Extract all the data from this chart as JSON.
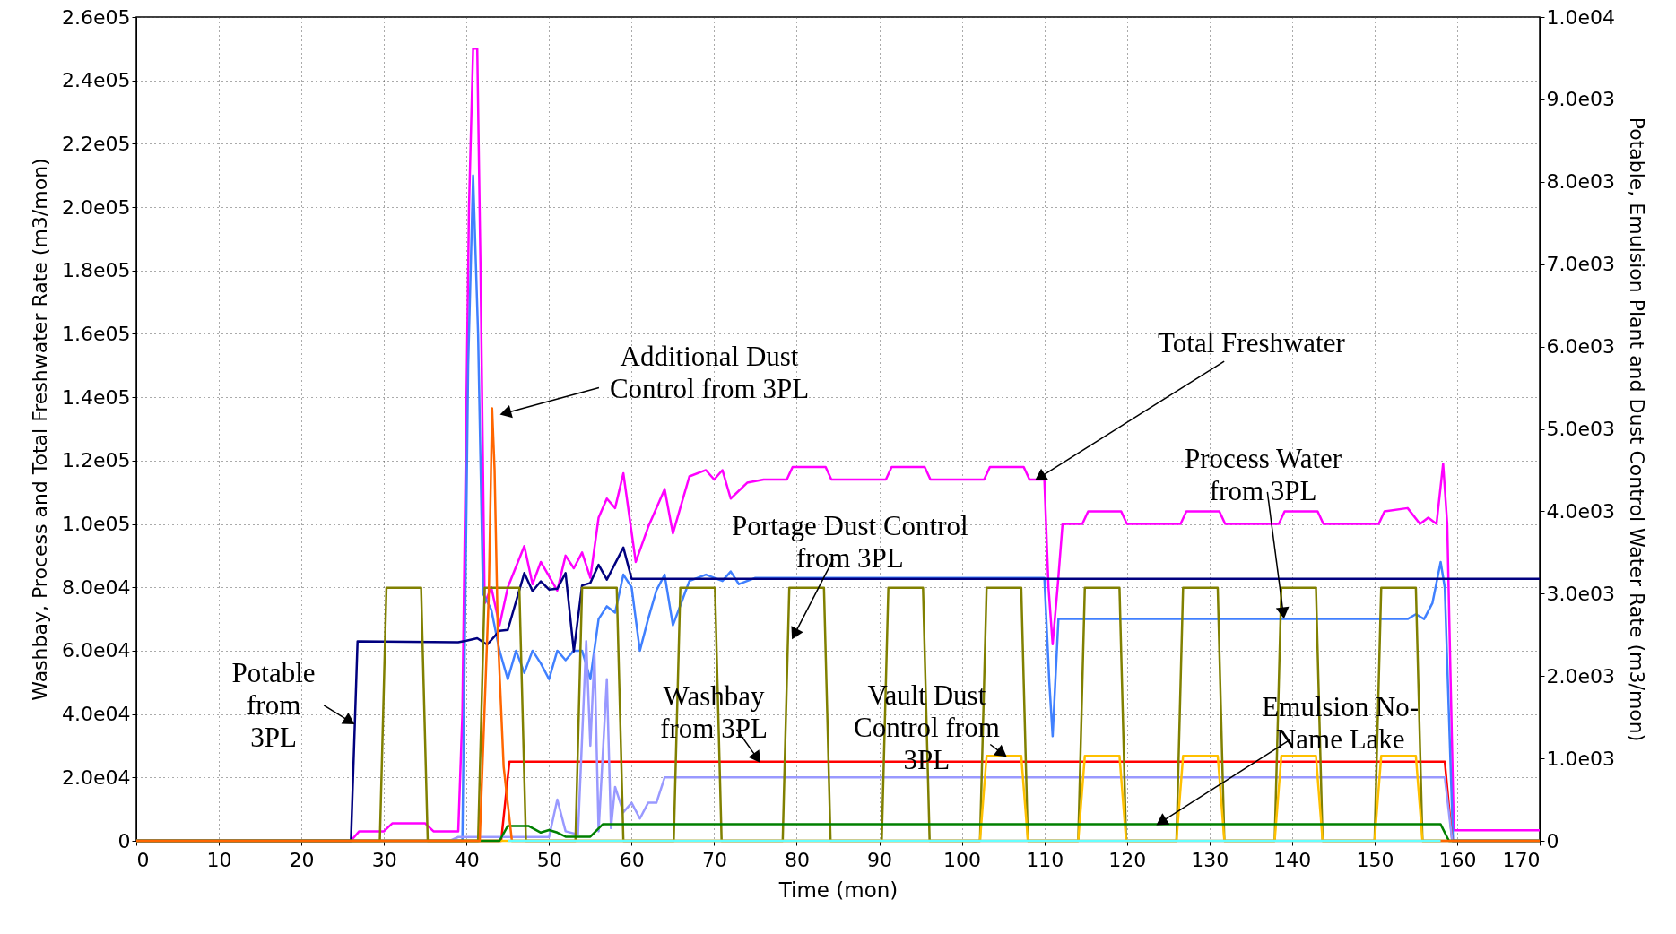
{
  "chart_data": {
    "type": "line",
    "xlabel": "Time (mon)",
    "ylabel": "Washbay, Process and Total Freshwater Rate (m3/mon)",
    "y2label": "Potable, Emulsion Plant and Dust Control Water Rate (m3/mon)",
    "xlim": [
      0,
      170
    ],
    "xticks": [
      0,
      10,
      20,
      30,
      40,
      50,
      60,
      70,
      80,
      90,
      100,
      110,
      120,
      130,
      140,
      150,
      160,
      170
    ],
    "ylim": [
      0,
      260000
    ],
    "yticks": [
      {
        "value": 0,
        "label": "0"
      },
      {
        "value": 20000,
        "label": "2.0e04"
      },
      {
        "value": 40000,
        "label": "4.0e04"
      },
      {
        "value": 60000,
        "label": "6.0e04"
      },
      {
        "value": 80000,
        "label": "8.0e04"
      },
      {
        "value": 100000,
        "label": "1.0e05"
      },
      {
        "value": 120000,
        "label": "1.2e05"
      },
      {
        "value": 140000,
        "label": "1.4e05"
      },
      {
        "value": 160000,
        "label": "1.6e05"
      },
      {
        "value": 180000,
        "label": "1.8e05"
      },
      {
        "value": 200000,
        "label": "2.0e05"
      },
      {
        "value": 220000,
        "label": "2.2e05"
      },
      {
        "value": 240000,
        "label": "2.4e05"
      },
      {
        "value": 260000,
        "label": "2.6e05"
      }
    ],
    "y2lim": [
      0,
      10000
    ],
    "y2ticks": [
      {
        "value": 0,
        "label": "0"
      },
      {
        "value": 1000,
        "label": "1.0e03"
      },
      {
        "value": 2000,
        "label": "2.0e03"
      },
      {
        "value": 3000,
        "label": "3.0e03"
      },
      {
        "value": 4000,
        "label": "4.0e03"
      },
      {
        "value": 5000,
        "label": "5.0e03"
      },
      {
        "value": 6000,
        "label": "6.0e03"
      },
      {
        "value": 7000,
        "label": "7.0e03"
      },
      {
        "value": 8000,
        "label": "8.0e03"
      },
      {
        "value": 9000,
        "label": "9.0e03"
      },
      {
        "value": 10000,
        "label": "1.0e04"
      }
    ],
    "grid": true,
    "series": [
      {
        "color": "#ff00ff",
        "x": [
          0,
          26,
          27,
          30,
          31,
          35,
          36,
          39,
          39.5,
          40.3,
          40.8,
          41.3,
          41.7,
          42.2,
          43,
          44,
          45,
          47,
          48,
          49,
          51,
          52,
          53,
          54,
          55,
          56,
          57,
          58,
          59,
          60.5,
          62,
          64,
          65,
          67,
          69,
          70,
          71,
          72,
          74,
          76,
          78.8,
          79.5,
          83.5,
          84.2,
          90.8,
          91.5,
          95.5,
          96.2,
          102.7,
          103.4,
          107.5,
          108.2,
          110,
          110.5,
          111,
          111.6,
          112.2,
          114.6,
          115.3,
          119.3,
          120,
          126.5,
          127.2,
          131.2,
          131.9,
          138.4,
          139.1,
          143.1,
          143.8,
          150.5,
          151.2,
          154,
          155.5,
          156.5,
          157.5,
          158.3,
          158.8,
          159.6,
          170
        ],
        "values": [
          0,
          0,
          3000,
          3000,
          5500,
          5500,
          3000,
          3000,
          40000,
          200000,
          250000,
          250000,
          180000,
          75000,
          80000,
          68000,
          80000,
          93000,
          81000,
          88000,
          79000,
          90000,
          86000,
          91000,
          83000,
          102000,
          108000,
          105000,
          116000,
          88000,
          99000,
          111000,
          97000,
          115000,
          117000,
          114000,
          117000,
          108000,
          113000,
          114000,
          114000,
          118000,
          118000,
          114000,
          114000,
          118000,
          118000,
          114000,
          114000,
          118000,
          118000,
          114000,
          114000,
          80000,
          62000,
          80000,
          100000,
          100000,
          104000,
          104000,
          100000,
          100000,
          104000,
          104000,
          100000,
          100000,
          104000,
          104000,
          100000,
          100000,
          104000,
          105000,
          100000,
          102000,
          100000,
          119000,
          100000,
          3300,
          3300
        ]
      },
      {
        "color": "#00007f",
        "axis": "y2",
        "x": [
          0,
          26,
          26.8,
          39,
          40,
          41.3,
          42.5,
          44,
          45,
          47,
          48,
          49,
          50,
          51,
          52,
          53,
          54,
          55,
          56,
          57,
          59,
          60,
          170
        ],
        "values": [
          0,
          0,
          2420,
          2410,
          2430,
          2460,
          2380,
          2550,
          2560,
          3250,
          3030,
          3150,
          3050,
          3060,
          3250,
          2300,
          3100,
          3130,
          3350,
          3170,
          3560,
          3180,
          3180
        ]
      },
      {
        "color": "#4080ff",
        "x": [
          0,
          39.5,
          40.2,
          40.8,
          41.4,
          42,
          43,
          44,
          45,
          46,
          47,
          48,
          49,
          50,
          51,
          52,
          53,
          54,
          55,
          56,
          57,
          58,
          59,
          60,
          61,
          62,
          63,
          64,
          65,
          67,
          69,
          71,
          72,
          73,
          75,
          110,
          110.6,
          111,
          111.7,
          154,
          155,
          156,
          157,
          158,
          158.5,
          159.5,
          170
        ],
        "values": [
          0,
          0,
          150000,
          210000,
          160000,
          78000,
          73000,
          60000,
          51000,
          60000,
          53000,
          60000,
          56000,
          51000,
          60000,
          57000,
          60000,
          60000,
          51000,
          70000,
          74000,
          72000,
          84000,
          80000,
          60000,
          70000,
          79000,
          84000,
          68000,
          82000,
          84000,
          82000,
          85000,
          81000,
          83000,
          83000,
          50000,
          33000,
          70000,
          70000,
          71500,
          70000,
          75000,
          88000,
          80000,
          0,
          0
        ]
      },
      {
        "color": "#808000",
        "axis": "y2",
        "x": [
          0,
          29.5,
          30.3,
          34.5,
          35.3,
          41.4,
          42.2,
          46.4,
          47.2,
          53.2,
          54,
          58.2,
          59,
          65.1,
          65.9,
          70.1,
          70.9,
          78.3,
          79.1,
          83.3,
          84.1,
          90.3,
          91.1,
          95.3,
          96.1,
          102.2,
          103,
          107.2,
          108,
          114.1,
          114.9,
          119.1,
          119.9,
          126,
          126.8,
          131,
          131.8,
          137.9,
          138.7,
          142.9,
          143.7,
          150,
          150.8,
          155,
          155.8,
          170
        ],
        "values": [
          0,
          0,
          3070,
          3070,
          0,
          0,
          3070,
          3070,
          0,
          0,
          3070,
          3070,
          0,
          0,
          3070,
          3070,
          0,
          0,
          3070,
          3070,
          0,
          0,
          3070,
          3070,
          0,
          0,
          3070,
          3070,
          0,
          0,
          3070,
          3070,
          0,
          0,
          3070,
          3070,
          0,
          0,
          3070,
          3070,
          0,
          0,
          3070,
          3070,
          0,
          0
        ]
      },
      {
        "color": "#ff0000",
        "x": [
          0,
          44.2,
          45.2,
          158.5,
          159.4,
          170
        ],
        "values": [
          0,
          0,
          25000,
          25000,
          0,
          0
        ]
      },
      {
        "color": "#ffc000",
        "axis": "y2",
        "x": [
          0,
          102.2,
          103,
          107.2,
          108,
          114.1,
          114.9,
          119.1,
          119.9,
          126,
          126.8,
          131,
          131.8,
          137.9,
          138.7,
          142.9,
          143.7,
          150,
          150.8,
          155,
          155.8,
          158
        ],
        "values": [
          0,
          0,
          1030,
          1030,
          0,
          0,
          1030,
          1030,
          0,
          0,
          1030,
          1030,
          0,
          0,
          1030,
          1030,
          0,
          0,
          1030,
          1030,
          0,
          0
        ]
      },
      {
        "color": "#008000",
        "axis": "y2",
        "x": [
          0,
          44,
          45,
          47.5,
          49,
          50,
          51,
          52,
          55,
          56.5,
          58,
          158,
          159,
          170
        ],
        "values": [
          0,
          0,
          180,
          180,
          100,
          130,
          100,
          50,
          50,
          200,
          200,
          200,
          0,
          0
        ]
      },
      {
        "color": "#ff6600",
        "axis": "y2",
        "x": [
          0,
          41.6,
          42.7,
          43.1,
          43.4,
          43.8,
          44.5,
          45.5,
          170
        ],
        "values": [
          0,
          0,
          3000,
          5250,
          4500,
          2500,
          900,
          0,
          0
        ]
      },
      {
        "color": "#9999ff",
        "x": [
          0,
          38,
          39,
          50,
          51,
          52,
          53.5,
          54.5,
          55,
          55.5,
          56,
          57,
          57.5,
          58,
          59,
          60,
          61,
          62,
          63,
          64,
          158.5,
          159.4,
          170
        ],
        "values": [
          0,
          0,
          1200,
          1200,
          13000,
          3000,
          2000,
          63000,
          30000,
          59000,
          3000,
          51000,
          4000,
          17000,
          9000,
          12000,
          7000,
          12000,
          12000,
          20000,
          20000,
          0,
          0
        ]
      },
      {
        "color": "#66ffff",
        "axis": "y2",
        "x": [
          45,
          158
        ],
        "values": [
          0,
          0
        ]
      }
    ],
    "annotations": [
      "Additional Dust\nControl from 3PL",
      {
        "text": "Total Freshwater",
        "x": 109,
        "y": 114000
      },
      {
        "text": "Process Water\nfrom 3PL",
        "x": 139,
        "y": 70500
      },
      {
        "text": "Portage Dust Control\nfrom 3PL",
        "x": 79.5,
        "y": 64000
      },
      {
        "text": "Potable\nfrom\n3PL",
        "x": 26.3,
        "y": 37000
      },
      {
        "text": "Washbay\nfrom 3PL",
        "x": 75.5,
        "y": 25000
      },
      {
        "text": "Vault Dust\nControl from\n3PL",
        "x": 105.3,
        "y": 26780
      },
      {
        "text": "Emulsion No-\nName Lake",
        "x": 123.7,
        "y": 5200
      }
    ]
  }
}
